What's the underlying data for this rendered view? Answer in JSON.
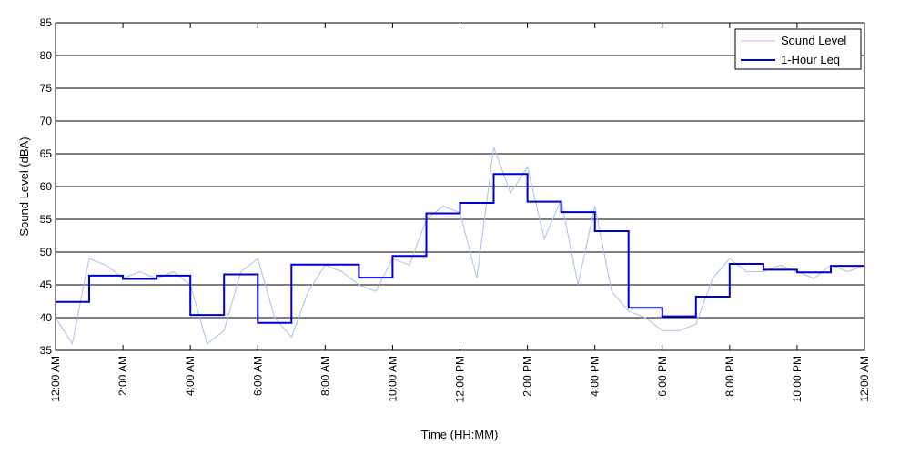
{
  "chart_data": {
    "type": "line",
    "title": "",
    "xlabel": "Time (HH:MM)",
    "ylabel": "Sound Level (dBA)",
    "xlim": [
      0,
      24
    ],
    "ylim": [
      35,
      85
    ],
    "y_ticks": [
      35,
      40,
      45,
      50,
      55,
      60,
      65,
      70,
      75,
      80,
      85
    ],
    "x_ticks": [
      0,
      2,
      4,
      6,
      8,
      10,
      12,
      14,
      16,
      18,
      20,
      22,
      24
    ],
    "x_tick_labels": [
      "12:00 AM",
      "2:00 AM",
      "4:00 AM",
      "6:00 AM",
      "8:00 AM",
      "10:00 AM",
      "12:00 PM",
      "2:00 PM",
      "4:00 PM",
      "6:00 PM",
      "8:00 PM",
      "10:00 PM",
      "12:00 AM"
    ],
    "grid": "horizontal",
    "legend_position": "top-right",
    "colors": {
      "sound_level": "#a8c0f0",
      "leq": "#0000cc"
    },
    "series": [
      {
        "name": "Sound Level",
        "style": "thin-light-line",
        "x": [
          0.0,
          0.5,
          0.8,
          1.0,
          1.5,
          2.0,
          2.5,
          3.0,
          3.5,
          4.0,
          4.5,
          5.0,
          5.5,
          6.0,
          6.5,
          7.0,
          7.5,
          8.0,
          8.5,
          9.0,
          9.5,
          10.0,
          10.5,
          11.0,
          11.5,
          12.0,
          12.5,
          13.0,
          13.5,
          14.0,
          14.5,
          15.0,
          15.5,
          16.0,
          16.5,
          17.0,
          17.5,
          18.0,
          18.5,
          19.0,
          19.5,
          20.0,
          20.5,
          21.0,
          21.5,
          22.0,
          22.5,
          23.0,
          23.5,
          24.0
        ],
        "values": [
          40,
          36,
          44,
          49,
          48,
          46,
          47,
          46,
          47,
          45,
          36,
          38,
          47,
          49,
          40,
          37,
          44,
          48,
          47,
          45,
          44,
          49,
          48,
          55,
          57,
          56,
          46,
          66,
          59,
          63,
          52,
          58,
          45,
          57,
          44,
          41,
          40,
          38,
          38,
          39,
          46,
          49,
          47,
          47,
          48,
          47,
          46,
          48,
          47,
          48
        ]
      },
      {
        "name": "1-Hour Leq",
        "style": "step",
        "x": [
          0,
          1,
          2,
          3,
          4,
          5,
          6,
          7,
          8,
          9,
          10,
          11,
          12,
          13,
          14,
          15,
          16,
          17,
          18,
          19,
          20,
          21,
          22,
          23
        ],
        "values": [
          42.4,
          46.4,
          45.9,
          46.4,
          40.4,
          46.6,
          39.2,
          48.1,
          48.1,
          46.1,
          49.4,
          55.9,
          57.5,
          61.9,
          57.7,
          56.1,
          53.2,
          41.5,
          40.2,
          43.2,
          48.2,
          47.3,
          46.9,
          47.9
        ]
      }
    ]
  }
}
